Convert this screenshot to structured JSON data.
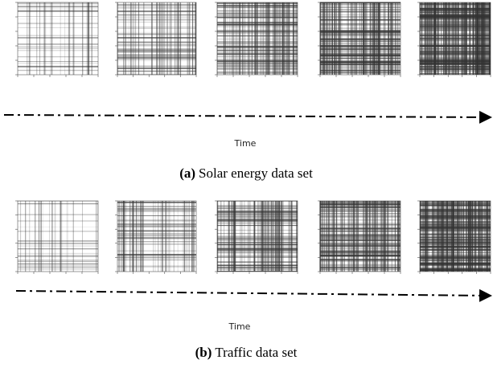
{
  "panels": [
    {
      "time_label": "Time",
      "caption": {
        "label": "(a)",
        "text": "Solar energy data set"
      }
    },
    {
      "time_label": "Time",
      "caption": {
        "label": "(b)",
        "text": "Traffic data set"
      }
    }
  ]
}
